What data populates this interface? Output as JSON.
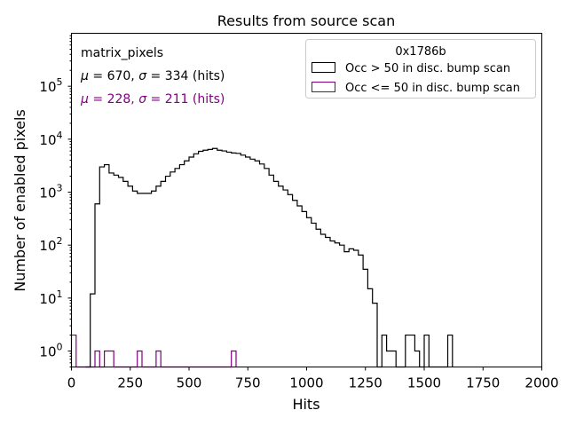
{
  "chart_data": {
    "type": "histogram",
    "title": "Results from source scan",
    "xlabel": "Hits",
    "ylabel": "Number of enabled pixels",
    "xlim": [
      0,
      2000
    ],
    "ylim": [
      0.5,
      1000000
    ],
    "yscale": "log",
    "x_ticks": [
      0,
      250,
      500,
      750,
      1000,
      1250,
      1500,
      1750,
      2000
    ],
    "y_ticks": [
      {
        "value": 1,
        "mantissa": "10",
        "exp": "0"
      },
      {
        "value": 10,
        "mantissa": "10",
        "exp": "1"
      },
      {
        "value": 100,
        "mantissa": "10",
        "exp": "2"
      },
      {
        "value": 1000,
        "mantissa": "10",
        "exp": "3"
      },
      {
        "value": 10000,
        "mantissa": "10",
        "exp": "4"
      },
      {
        "value": 100000,
        "mantissa": "10",
        "exp": "5"
      }
    ],
    "legend": {
      "title": "0x1786b",
      "placement": "top-right",
      "entries": [
        "Occ > 50 in disc. bump scan",
        "Occ <= 50 in disc. bump scan"
      ]
    },
    "annotations": [
      {
        "text": "matrix_pixels",
        "color": "#000000"
      },
      {
        "mu": "670",
        "sigma": "334",
        "unit": "(hits)",
        "color": "#000000"
      },
      {
        "mu": "228",
        "sigma": "211",
        "unit": "(hits)",
        "color": "#800080"
      }
    ],
    "bin_width": 20,
    "series": [
      {
        "name": "Occ > 50 in disc. bump scan",
        "color": "#000000",
        "bin_start": 60,
        "values": [
          0,
          12,
          600,
          3000,
          3300,
          2300,
          2100,
          1900,
          1600,
          1300,
          1050,
          950,
          950,
          950,
          1050,
          1300,
          1600,
          2000,
          2400,
          2800,
          3300,
          3900,
          4600,
          5300,
          5900,
          6200,
          6400,
          6700,
          6200,
          6000,
          5700,
          5500,
          5400,
          5000,
          4600,
          4200,
          3900,
          3400,
          2800,
          2100,
          1600,
          1300,
          1100,
          900,
          700,
          550,
          430,
          330,
          260,
          200,
          160,
          140,
          120,
          110,
          100,
          75,
          85,
          80,
          65,
          35,
          15,
          8,
          0,
          2,
          1,
          1,
          0,
          0,
          2,
          2,
          1,
          0,
          2,
          0,
          0,
          0,
          0,
          2
        ]
      },
      {
        "name": "Occ <= 50 in disc. bump scan",
        "color": "#800080",
        "bin_start": 0,
        "values": [
          2,
          0,
          0,
          0,
          0,
          1,
          0,
          1,
          1,
          0,
          0,
          0,
          0,
          0,
          1,
          0,
          0,
          0,
          1,
          0,
          0,
          0,
          0,
          0,
          0,
          0,
          0,
          0,
          0,
          0,
          0,
          0,
          0,
          0,
          1
        ]
      }
    ]
  }
}
